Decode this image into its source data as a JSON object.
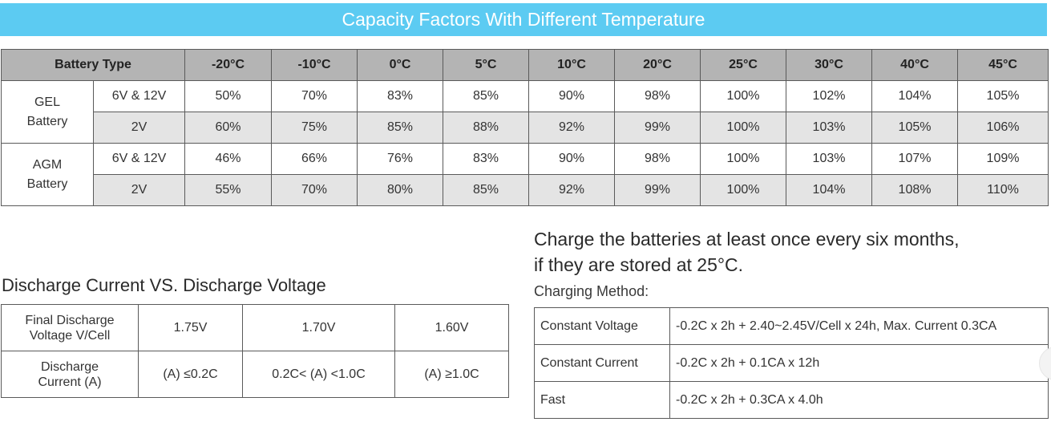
{
  "banner": {
    "title": "Capacity Factors With Different Temperature"
  },
  "capacity_table": {
    "header_type": "Battery Type",
    "temperatures": [
      "-20°C",
      "-10°C",
      "0°C",
      "5°C",
      "10°C",
      "20°C",
      "25°C",
      "30°C",
      "40°C",
      "45°C"
    ],
    "groups": [
      {
        "type_line1": "GEL",
        "type_line2": "Battery",
        "rows": [
          {
            "voltage": "6V & 12V",
            "values": [
              "50%",
              "70%",
              "83%",
              "85%",
              "90%",
              "98%",
              "100%",
              "102%",
              "104%",
              "105%"
            ]
          },
          {
            "voltage": "2V",
            "values": [
              "60%",
              "75%",
              "85%",
              "88%",
              "92%",
              "99%",
              "100%",
              "103%",
              "105%",
              "106%"
            ]
          }
        ]
      },
      {
        "type_line1": "AGM",
        "type_line2": "Battery",
        "rows": [
          {
            "voltage": "6V & 12V",
            "values": [
              "46%",
              "66%",
              "76%",
              "83%",
              "90%",
              "98%",
              "100%",
              "103%",
              "107%",
              "109%"
            ]
          },
          {
            "voltage": "2V",
            "values": [
              "55%",
              "70%",
              "80%",
              "85%",
              "92%",
              "99%",
              "100%",
              "104%",
              "108%",
              "110%"
            ]
          }
        ]
      }
    ]
  },
  "discharge": {
    "title": "Discharge Current VS. Discharge Voltage",
    "row1": {
      "label_line1": "Final Discharge",
      "label_line2": "Voltage V/Cell",
      "values": [
        "1.75V",
        "1.70V",
        "1.60V"
      ]
    },
    "row2": {
      "label_line1": "Discharge",
      "label_line2": "Current (A)",
      "values": [
        "(A) ≤0.2C",
        "0.2C< (A) <1.0C",
        "(A) ≥1.0C"
      ]
    }
  },
  "charging": {
    "note_line1": "Charge the batteries at least once every six months,",
    "note_line2": "if they are stored at 25°C.",
    "method_label": "Charging Method:",
    "methods": [
      {
        "name": "Constant Voltage",
        "desc": "-0.2C x 2h + 2.40~2.45V/Cell x 24h, Max. Current 0.3CA"
      },
      {
        "name": "Constant Current",
        "desc": "-0.2C x 2h + 0.1CA x 12h"
      },
      {
        "name": "Fast",
        "desc": "-0.2C x 2h + 0.3CA x 4.0h"
      }
    ]
  },
  "colors": {
    "banner": "#5ccbf2",
    "header_bg": "#b4b4b4",
    "shade_bg": "#e4e4e4",
    "border": "#5a5a5a"
  }
}
